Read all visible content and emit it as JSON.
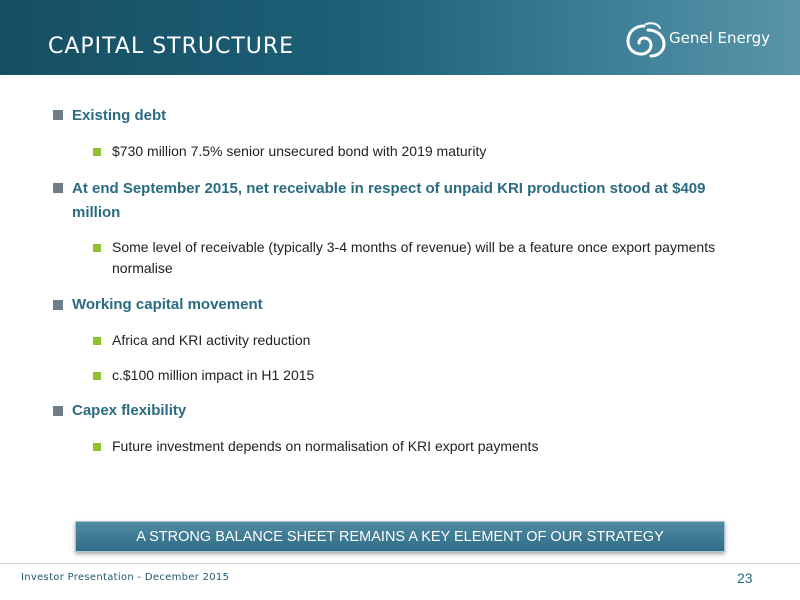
{
  "header": {
    "title": "CAPITAL STRUCTURE",
    "logo_text": "Genel Energy"
  },
  "bullets": [
    {
      "text": "Existing debt",
      "sub": [
        "$730 million 7.5% senior unsecured bond with 2019 maturity"
      ]
    },
    {
      "text": "At end September 2015, net receivable in respect of unpaid KRI production stood at $409 million",
      "sub": [
        "Some level of receivable (typically 3-4 months of revenue) will be a feature once export payments normalise"
      ]
    },
    {
      "text": "Working capital movement",
      "sub": [
        "Africa and KRI activity reduction",
        "c.$100 million impact in H1 2015"
      ]
    },
    {
      "text": "Capex flexibility",
      "sub": [
        "Future investment depends on normalisation of KRI export payments"
      ]
    }
  ],
  "banner": "A STRONG BALANCE SHEET REMAINS A KEY ELEMENT OF OUR STRATEGY",
  "footer": {
    "text": "Investor Presentation - December 2015",
    "page": "23"
  },
  "colors": {
    "header": "#1d6077",
    "heading_text": "#2a6b82",
    "sub_bullet": "#8ec12b",
    "main_bullet": "#6d7e88"
  }
}
